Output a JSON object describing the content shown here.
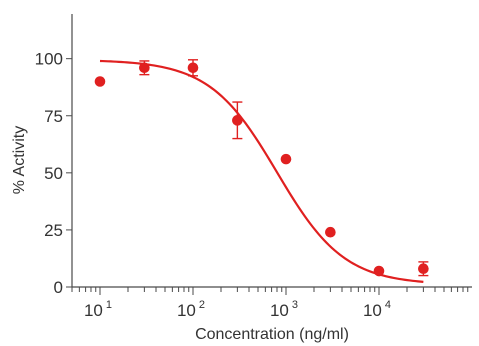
{
  "chart_data": {
    "type": "scatter",
    "xlabel": "Concentration (ng/ml)",
    "ylabel": "% Activity",
    "xscale": "log",
    "xlim": [
      5,
      100000
    ],
    "ylim": [
      0,
      120
    ],
    "x_ticks": [
      {
        "base": "10",
        "exp": "1",
        "value": 10
      },
      {
        "base": "10",
        "exp": "2",
        "value": 100
      },
      {
        "base": "10",
        "exp": "3",
        "value": 1000
      },
      {
        "base": "10",
        "exp": "4",
        "value": 10000
      }
    ],
    "y_ticks": [
      "0",
      "25",
      "50",
      "75",
      "100"
    ],
    "color": "#e02020",
    "series": [
      {
        "points": [
          {
            "x": 10,
            "y": 90,
            "err": 0
          },
          {
            "x": 30,
            "y": 96,
            "err": 3
          },
          {
            "x": 100,
            "y": 96,
            "err": 3.5
          },
          {
            "x": 300,
            "y": 73,
            "err": 8
          },
          {
            "x": 1000,
            "y": 56,
            "err": 0
          },
          {
            "x": 3000,
            "y": 24,
            "err": 0
          },
          {
            "x": 10000,
            "y": 7,
            "err": 0
          },
          {
            "x": 30000,
            "y": 8,
            "err": 3
          }
        ]
      }
    ],
    "fit_curve": {
      "model": "4PL",
      "top": 99.5,
      "bottom": 1,
      "ic50": 800,
      "hill": 1.2,
      "x_range": [
        10,
        30000
      ]
    }
  }
}
